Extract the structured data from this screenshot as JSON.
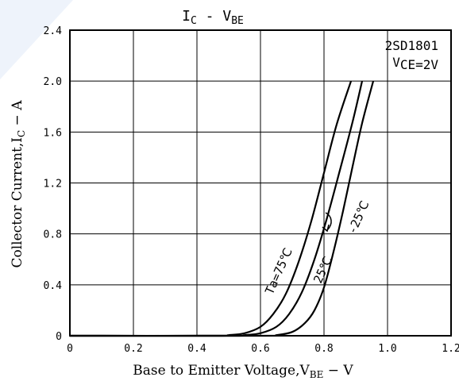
{
  "chart_data": {
    "type": "line",
    "title": "IC - VBE",
    "title_main_1": "I",
    "title_sub_1": "C",
    "title_dash": " - V",
    "title_sub_2": "BE",
    "xlabel": "Base to Emitter Voltage,V",
    "xlabel_sub": "BE",
    "xlabel_suffix": " − V",
    "ylabel": "Collector Current,I",
    "ylabel_sub": "C",
    "ylabel_suffix": " − A",
    "xlim": [
      0,
      1.2
    ],
    "ylim": [
      0,
      2.4
    ],
    "grid": true,
    "x_ticks": [
      "0",
      "0.2",
      "0.4",
      "0.6",
      "0.8",
      "1.0",
      "1.2"
    ],
    "y_ticks": [
      "0",
      "0.4",
      "0.8",
      "1.2",
      "1.6",
      "2.0",
      "2.4"
    ],
    "annotations": {
      "part_number": "2SD1801",
      "condition_v": "V",
      "condition_rest": "CE=2V"
    },
    "series": [
      {
        "name": "Ta=75℃",
        "x": [
          0.0,
          0.45,
          0.5,
          0.55,
          0.6,
          0.64,
          0.68,
          0.72,
          0.76,
          0.8,
          0.84,
          0.885
        ],
        "y": [
          0.0,
          0.0,
          0.005,
          0.02,
          0.07,
          0.17,
          0.33,
          0.58,
          0.9,
          1.28,
          1.66,
          2.0
        ]
      },
      {
        "name": "25℃",
        "x": [
          0.0,
          0.5,
          0.55,
          0.6,
          0.65,
          0.69,
          0.73,
          0.77,
          0.81,
          0.85,
          0.89,
          0.92
        ],
        "y": [
          0.0,
          0.0,
          0.005,
          0.02,
          0.07,
          0.17,
          0.34,
          0.6,
          0.93,
          1.3,
          1.68,
          2.0
        ]
      },
      {
        "name": "-25℃",
        "x": [
          0.0,
          0.6,
          0.65,
          0.7,
          0.74,
          0.77,
          0.8,
          0.83,
          0.86,
          0.89,
          0.92,
          0.955
        ],
        "y": [
          0.0,
          0.0,
          0.005,
          0.03,
          0.1,
          0.2,
          0.38,
          0.66,
          0.98,
          1.33,
          1.67,
          2.0
        ]
      }
    ],
    "curve_labels": [
      "Ta=75℃",
      "25℃",
      "-25℃"
    ]
  }
}
